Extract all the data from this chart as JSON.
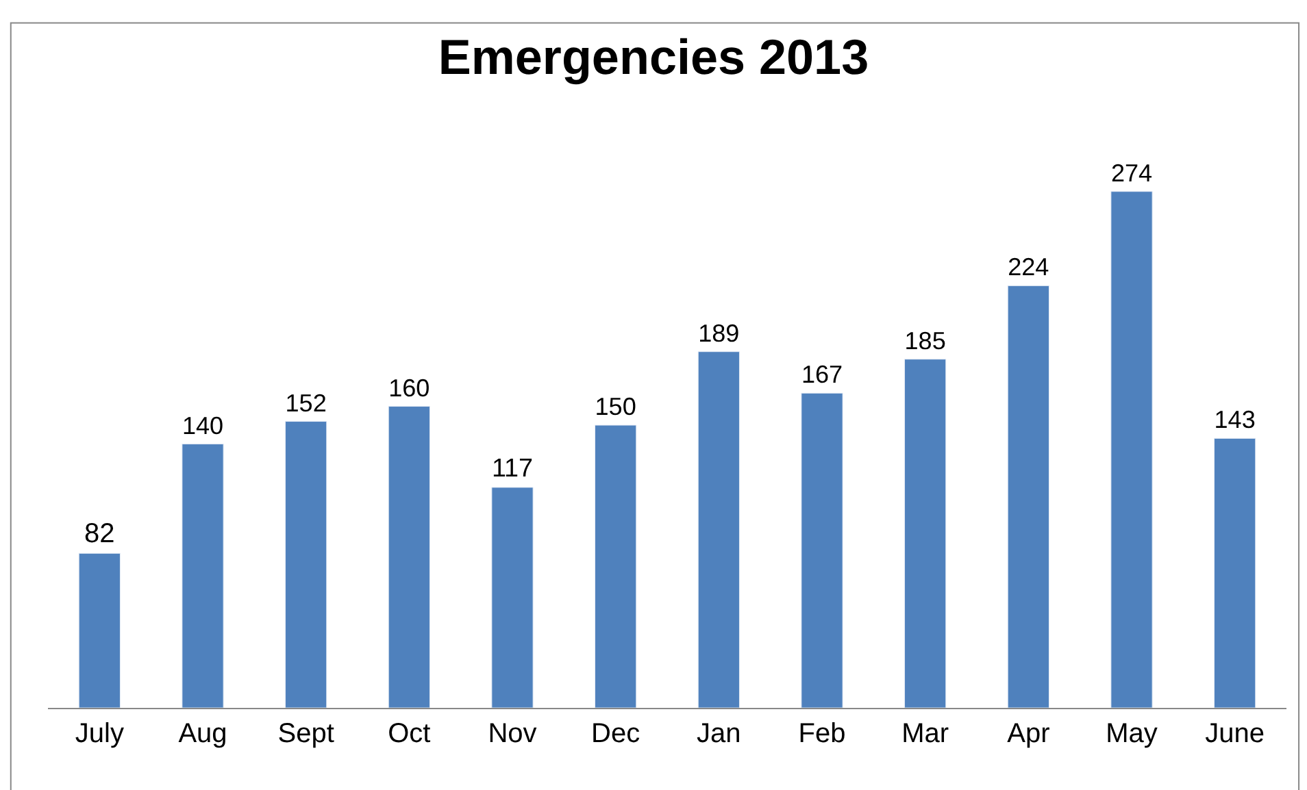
{
  "chart_data": {
    "type": "bar",
    "title": "Emergencies 2013",
    "categories": [
      "July",
      "Aug",
      "Sept",
      "Oct",
      "Nov",
      "Dec",
      "Jan",
      "Feb",
      "Mar",
      "Apr",
      "May",
      "June"
    ],
    "values": [
      82,
      140,
      152,
      160,
      117,
      150,
      189,
      167,
      185,
      224,
      274,
      143
    ],
    "color": "#4f81bd",
    "data_labels": true,
    "tick_labels": "x"
  }
}
